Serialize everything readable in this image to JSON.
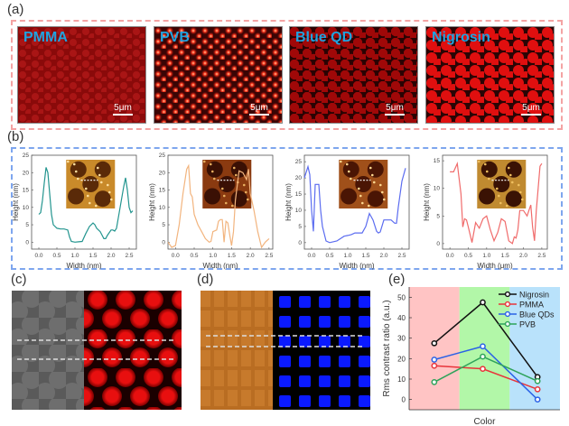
{
  "panels": {
    "a": {
      "label": "(a)",
      "images": [
        {
          "name": "PMMA",
          "scale": "5μm",
          "pattern": "dim-dots"
        },
        {
          "name": "PVB",
          "scale": "5μm",
          "pattern": "bright-dots"
        },
        {
          "name": "Blue QD",
          "scale": "5μm",
          "pattern": "dark-cells"
        },
        {
          "name": "Nigrosin",
          "scale": "5μm",
          "pattern": "red-circles"
        }
      ]
    },
    "b": {
      "label": "(b)",
      "plots": [
        {
          "id": "pmma-afm",
          "color": "#23958f",
          "xlabel": "Width (nm)",
          "ylabel": "Height (nm)",
          "xticks": [
            "0.0",
            "0.5",
            "1.0",
            "1.5",
            "2.0",
            "2.5"
          ],
          "yticks": [
            "0",
            "5",
            "10",
            "15",
            "20",
            "25"
          ],
          "xlim": [
            -0.2,
            2.7
          ],
          "ylim": [
            -2,
            25
          ],
          "x": [
            0.0,
            0.05,
            0.1,
            0.15,
            0.2,
            0.25,
            0.3,
            0.35,
            0.4,
            0.5,
            0.6,
            0.7,
            0.8,
            0.85,
            0.9,
            1.0,
            1.1,
            1.2,
            1.3,
            1.4,
            1.5,
            1.55,
            1.6,
            1.7,
            1.8,
            1.85,
            1.9,
            2.0,
            2.05,
            2.1,
            2.15,
            2.2,
            2.3,
            2.35,
            2.4,
            2.45,
            2.5,
            2.55,
            2.6
          ],
          "y": [
            8,
            8.5,
            12,
            17,
            21.5,
            20,
            14,
            8,
            5,
            4,
            3.8,
            3.8,
            3.5,
            1.5,
            0.2,
            0,
            0.1,
            0.2,
            2.5,
            4.5,
            5.5,
            5,
            4,
            3,
            1,
            1,
            2,
            3.5,
            3.5,
            3.2,
            4,
            7,
            13,
            16,
            18.5,
            15,
            10,
            8.5,
            9
          ]
        },
        {
          "id": "pvb-afm",
          "color": "#f2b47e",
          "xlabel": "Width (nm)",
          "ylabel": "Height (nm)",
          "xticks": [
            "0.0",
            "0.5",
            "1.0",
            "1.5",
            "2.0",
            "2.5"
          ],
          "yticks": [
            "0",
            "5",
            "10",
            "15",
            "20",
            "25"
          ],
          "xlim": [
            -0.2,
            2.6
          ],
          "ylim": [
            -2,
            25
          ],
          "x": [
            -0.2,
            -0.1,
            0.0,
            0.1,
            0.2,
            0.3,
            0.35,
            0.4,
            0.45,
            0.5,
            0.6,
            0.7,
            0.8,
            0.9,
            0.95,
            1.0,
            1.1,
            1.15,
            1.2,
            1.25,
            1.3,
            1.35,
            1.4,
            1.45,
            1.5,
            1.55,
            1.6,
            1.7,
            1.8,
            1.9,
            1.95,
            2.0,
            2.1,
            2.2,
            2.3,
            2.4,
            2.5
          ],
          "y": [
            0,
            -1.5,
            -1,
            5,
            14,
            21,
            22,
            14,
            13,
            8,
            5,
            3,
            1,
            0,
            0.2,
            3,
            3.5,
            6,
            6.5,
            6.5,
            0,
            6,
            5.5,
            2,
            -1,
            3,
            12,
            20.5,
            20,
            18,
            21,
            14,
            9,
            3,
            -1.5,
            0,
            1
          ]
        },
        {
          "id": "blueqd-afm",
          "color": "#5b6cf0",
          "xlabel": "Width (nm)",
          "ylabel": "Height (nm)",
          "xticks": [
            "0.0",
            "0.5",
            "1.0",
            "1.5",
            "2.0",
            "2.5"
          ],
          "yticks": [
            "0",
            "5",
            "10",
            "15",
            "20",
            "25"
          ],
          "xlim": [
            -0.2,
            2.7
          ],
          "ylim": [
            -2,
            27
          ],
          "x": [
            -0.2,
            -0.1,
            -0.05,
            0.0,
            0.05,
            0.1,
            0.15,
            0.2,
            0.25,
            0.3,
            0.4,
            0.5,
            0.7,
            0.9,
            1.0,
            1.1,
            1.2,
            1.3,
            1.4,
            1.5,
            1.6,
            1.7,
            1.8,
            1.85,
            1.9,
            2.0,
            2.1,
            2.2,
            2.3,
            2.35,
            2.4,
            2.5,
            2.6
          ],
          "y": [
            20,
            23.5,
            21,
            10,
            3.5,
            18,
            18,
            18,
            10,
            5,
            0.5,
            0,
            0.5,
            2,
            2.2,
            2.5,
            3,
            3,
            3,
            5,
            9,
            7,
            3.5,
            3,
            3.3,
            7,
            7,
            7,
            6,
            6,
            11,
            19,
            23
          ]
        },
        {
          "id": "nigrosin-afm",
          "color": "#f06b6b",
          "xlabel": "Width (μm)",
          "ylabel": "Height (nm)",
          "xticks": [
            "0.0",
            "0.5",
            "1.0",
            "1.5",
            "2.0",
            "2.5"
          ],
          "yticks": [
            "0",
            "5",
            "10",
            "15"
          ],
          "xlim": [
            -0.2,
            2.65
          ],
          "ylim": [
            -1,
            16
          ],
          "x": [
            0.0,
            0.1,
            0.2,
            0.3,
            0.35,
            0.4,
            0.45,
            0.5,
            0.6,
            0.7,
            0.8,
            0.9,
            1.0,
            1.1,
            1.2,
            1.3,
            1.4,
            1.5,
            1.6,
            1.7,
            1.75,
            1.8,
            1.85,
            1.9,
            2.0,
            2.1,
            2.15,
            2.2,
            2.25,
            2.3,
            2.35,
            2.45,
            2.5
          ],
          "y": [
            13,
            13,
            14.5,
            9,
            3,
            4.5,
            4.3,
            3,
            0.2,
            3.8,
            2.8,
            4.5,
            5,
            2.5,
            0.5,
            2,
            4.5,
            4,
            0.5,
            0,
            1.2,
            1,
            2.5,
            6,
            6,
            5,
            6,
            7,
            3,
            0.5,
            6,
            14,
            14.5
          ]
        }
      ]
    },
    "c": {
      "label": "(c)"
    },
    "d": {
      "label": "(d)"
    },
    "e": {
      "label": "(e)"
    }
  },
  "chart_data": {
    "type": "line",
    "title": "",
    "xlabel": "Color",
    "ylabel": "Rms contrast ratio (a.u.)",
    "categories": [
      "Red",
      "Green",
      "Blue"
    ],
    "background_bands": [
      "#ffc4c4",
      "#b2f7a8",
      "#b9e2fb"
    ],
    "ylim": [
      -5,
      55
    ],
    "yticks": [
      "0",
      "10",
      "20",
      "30",
      "40",
      "50"
    ],
    "legend_position": "top-right",
    "series": [
      {
        "name": "Nigrosin",
        "color": "#111111",
        "values": [
          27.5,
          47.5,
          11
        ]
      },
      {
        "name": "PMMA",
        "color": "#e8343a",
        "values": [
          16.5,
          15,
          5
        ]
      },
      {
        "name": "Blue QDs",
        "color": "#2a62e6",
        "values": [
          19.5,
          26,
          0
        ]
      },
      {
        "name": "PVB",
        "color": "#2ea35a",
        "values": [
          8.5,
          21,
          9
        ]
      }
    ]
  }
}
